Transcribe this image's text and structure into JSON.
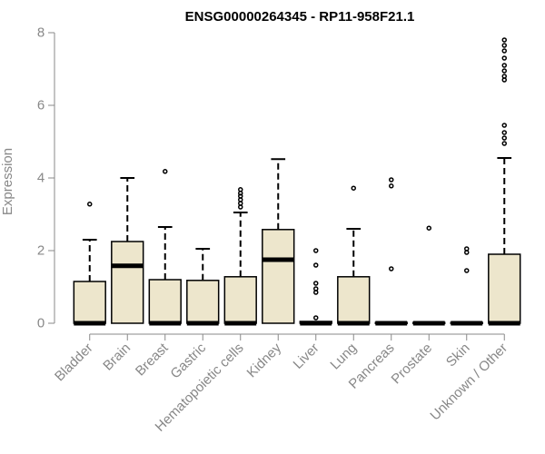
{
  "chart_data": {
    "type": "boxplot",
    "title": "ENSG00000264345 - RP11-958F21.1",
    "xlabel": "",
    "ylabel": "Expression",
    "ylim": [
      0,
      8
    ],
    "yticks": [
      0,
      2,
      4,
      6,
      8
    ],
    "colors": {
      "box_fill": "#ede6cc",
      "stroke": "#000000",
      "axis": "#888888"
    },
    "categories": [
      "Bladder",
      "Brain",
      "Breast",
      "Gastric",
      "Hematopoietic cells",
      "Kidney",
      "Liver",
      "Lung",
      "Pancreas",
      "Prostate",
      "Skin",
      "Unknown / Other"
    ],
    "boxes": [
      {
        "name": "Bladder",
        "min": 0,
        "q1": 0,
        "median": 0,
        "q3": 1.15,
        "max": 2.3,
        "outliers": [
          3.28
        ]
      },
      {
        "name": "Brain",
        "min": 0,
        "q1": 0,
        "median": 1.58,
        "q3": 2.25,
        "max": 4.0,
        "outliers": []
      },
      {
        "name": "Breast",
        "min": 0,
        "q1": 0,
        "median": 0,
        "q3": 1.2,
        "max": 2.65,
        "outliers": [
          4.18
        ]
      },
      {
        "name": "Gastric",
        "min": 0,
        "q1": 0,
        "median": 0,
        "q3": 1.18,
        "max": 2.05,
        "outliers": []
      },
      {
        "name": "Hematopoietic cells",
        "min": 0,
        "q1": 0,
        "median": 0,
        "q3": 1.28,
        "max": 3.05,
        "outliers": [
          3.2,
          3.3,
          3.4,
          3.5,
          3.58,
          3.68
        ]
      },
      {
        "name": "Kidney",
        "min": 0,
        "q1": 0,
        "median": 1.75,
        "q3": 2.58,
        "max": 4.52,
        "outliers": []
      },
      {
        "name": "Liver",
        "min": 0,
        "q1": 0,
        "median": 0,
        "q3": 0.05,
        "max": 0.05,
        "outliers": [
          0.15,
          0.85,
          0.95,
          1.1,
          1.6,
          2.0
        ]
      },
      {
        "name": "Lung",
        "min": 0,
        "q1": 0,
        "median": 0,
        "q3": 1.28,
        "max": 2.6,
        "outliers": [
          3.72
        ]
      },
      {
        "name": "Pancreas",
        "min": 0,
        "q1": 0,
        "median": 0,
        "q3": 0.02,
        "max": 0.02,
        "outliers": [
          1.5,
          3.78,
          3.95
        ]
      },
      {
        "name": "Prostate",
        "min": 0,
        "q1": 0,
        "median": 0,
        "q3": 0.02,
        "max": 0.02,
        "outliers": [
          2.62
        ]
      },
      {
        "name": "Skin",
        "min": 0,
        "q1": 0,
        "median": 0,
        "q3": 0.02,
        "max": 0.02,
        "outliers": [
          1.45,
          1.95,
          2.05
        ]
      },
      {
        "name": "Unknown / Other",
        "min": 0,
        "q1": 0,
        "median": 0,
        "q3": 1.9,
        "max": 4.55,
        "outliers": [
          4.95,
          5.1,
          5.25,
          5.45,
          6.7,
          6.8,
          6.95,
          7.1,
          7.3,
          7.5,
          7.65,
          7.8
        ]
      }
    ]
  }
}
